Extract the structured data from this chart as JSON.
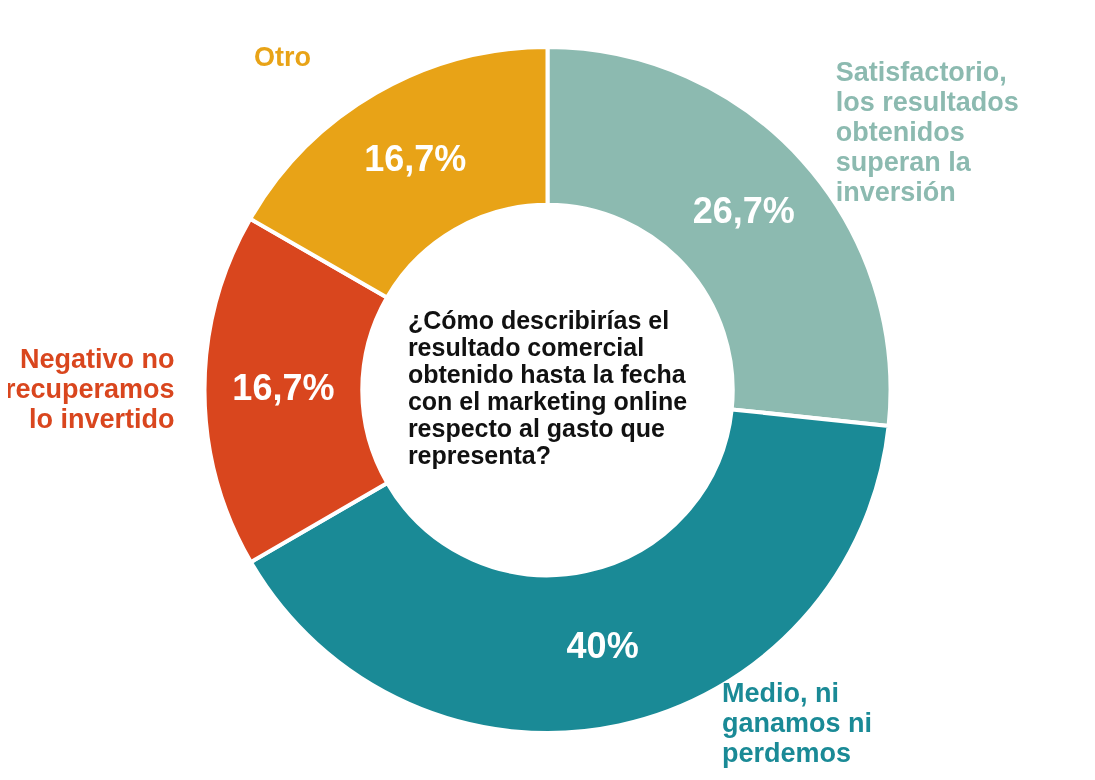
{
  "chart_data": {
    "type": "donut",
    "title": "¿Cómo describirías el resultado comercial obtenido hasta la fecha con el marketing online respecto al gasto que representa?",
    "categories": [
      "Satisfactorio, los resultados obtenidos superan la inversión",
      "Medio, ni ganamos ni perdemos",
      "Negativo no recuperamos lo invertido",
      "Otro"
    ],
    "values": [
      26.7,
      40,
      16.7,
      16.7
    ],
    "colors": [
      "#8cbab0",
      "#1a8a96",
      "#d9461e",
      "#e8a317"
    ],
    "value_labels": [
      "26,7%",
      "40%",
      "16,7%",
      "16,7%"
    ],
    "legend": false
  }
}
